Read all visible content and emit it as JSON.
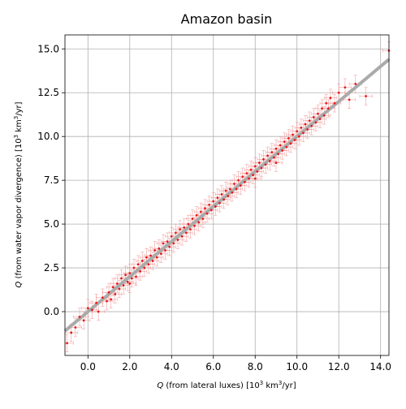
{
  "chart_data": {
    "type": "scatter",
    "title": "Amazon basin",
    "xlabel": {
      "var": "Q",
      "text": " (from lateral luxes) [10",
      "sup": "3",
      "unit": " km",
      "sup2": "3",
      "tail": "/yr]"
    },
    "ylabel": {
      "var": "Q",
      "text": " (from water vapor divergence) [10",
      "sup": "3",
      "unit": " km",
      "sup2": "3",
      "tail": "/yr]"
    },
    "xlim": [
      -1.1,
      14.4
    ],
    "ylim": [
      -2.5,
      15.8
    ],
    "xticks": [
      0.0,
      2.0,
      4.0,
      6.0,
      8.0,
      10.0,
      12.0,
      14.0
    ],
    "xtick_labels": [
      "0.0",
      "2.0",
      "4.0",
      "6.0",
      "8.0",
      "10.0",
      "12.0",
      "14.0"
    ],
    "yticks": [
      0.0,
      2.5,
      5.0,
      7.5,
      10.0,
      12.5,
      15.0
    ],
    "ytick_labels": [
      "0.0",
      "2.5",
      "5.0",
      "7.5",
      "10.0",
      "12.5",
      "15.0"
    ],
    "grid": true,
    "fit_line": {
      "slope": 1.0,
      "intercept": 0.0,
      "color": "#aaaaaa"
    },
    "point_color": "#e31a1c",
    "errorbar_color": "#f08080",
    "points": [
      [
        -1.0,
        -1.8,
        0.3,
        0.5
      ],
      [
        -0.8,
        -1.2,
        0.3,
        0.5
      ],
      [
        -0.6,
        -0.9,
        0.3,
        0.5
      ],
      [
        -0.4,
        -0.3,
        0.3,
        0.5
      ],
      [
        -0.2,
        -0.5,
        0.3,
        0.5
      ],
      [
        0.0,
        0.2,
        0.3,
        0.5
      ],
      [
        0.2,
        0.1,
        0.3,
        0.5
      ],
      [
        0.4,
        0.5,
        0.3,
        0.5
      ],
      [
        0.5,
        0.0,
        0.3,
        0.5
      ],
      [
        0.7,
        0.8,
        0.3,
        0.5
      ],
      [
        0.9,
        0.6,
        0.3,
        0.5
      ],
      [
        1.0,
        1.1,
        0.3,
        0.5
      ],
      [
        1.1,
        0.7,
        0.3,
        0.5
      ],
      [
        1.2,
        1.4,
        0.3,
        0.5
      ],
      [
        1.3,
        1.0,
        0.3,
        0.5
      ],
      [
        1.4,
        1.6,
        0.3,
        0.5
      ],
      [
        1.5,
        1.3,
        0.3,
        0.5
      ],
      [
        1.6,
        1.9,
        0.3,
        0.5
      ],
      [
        1.7,
        1.5,
        0.3,
        0.5
      ],
      [
        1.8,
        2.1,
        0.3,
        0.5
      ],
      [
        1.9,
        1.7,
        0.3,
        0.5
      ],
      [
        2.0,
        2.2,
        0.3,
        0.5
      ],
      [
        2.0,
        1.6,
        0.3,
        0.5
      ],
      [
        2.1,
        1.9,
        0.3,
        0.5
      ],
      [
        2.2,
        2.5,
        0.3,
        0.5
      ],
      [
        2.3,
        2.0,
        0.3,
        0.5
      ],
      [
        2.4,
        2.7,
        0.3,
        0.5
      ],
      [
        2.5,
        2.3,
        0.3,
        0.5
      ],
      [
        2.6,
        2.9,
        0.3,
        0.5
      ],
      [
        2.7,
        2.5,
        0.3,
        0.5
      ],
      [
        2.8,
        3.1,
        0.3,
        0.5
      ],
      [
        2.9,
        2.7,
        0.3,
        0.5
      ],
      [
        3.0,
        3.2,
        0.3,
        0.5
      ],
      [
        3.1,
        2.9,
        0.3,
        0.5
      ],
      [
        3.2,
        3.5,
        0.3,
        0.5
      ],
      [
        3.3,
        3.1,
        0.3,
        0.5
      ],
      [
        3.4,
        3.6,
        0.3,
        0.5
      ],
      [
        3.5,
        3.3,
        0.3,
        0.5
      ],
      [
        3.6,
        3.9,
        0.3,
        0.5
      ],
      [
        3.7,
        3.5,
        0.3,
        0.5
      ],
      [
        3.8,
        4.0,
        0.3,
        0.5
      ],
      [
        3.9,
        3.7,
        0.3,
        0.5
      ],
      [
        4.0,
        4.3,
        0.3,
        0.5
      ],
      [
        4.1,
        3.9,
        0.3,
        0.5
      ],
      [
        4.2,
        4.5,
        0.3,
        0.5
      ],
      [
        4.3,
        4.1,
        0.3,
        0.5
      ],
      [
        4.4,
        4.7,
        0.3,
        0.5
      ],
      [
        4.5,
        4.3,
        0.3,
        0.5
      ],
      [
        4.6,
        4.8,
        0.3,
        0.5
      ],
      [
        4.7,
        4.5,
        0.3,
        0.5
      ],
      [
        4.8,
        5.0,
        0.3,
        0.5
      ],
      [
        4.9,
        4.7,
        0.3,
        0.5
      ],
      [
        5.0,
        5.3,
        0.3,
        0.5
      ],
      [
        5.1,
        4.9,
        0.3,
        0.5
      ],
      [
        5.2,
        5.5,
        0.3,
        0.5
      ],
      [
        5.3,
        5.1,
        0.3,
        0.5
      ],
      [
        5.4,
        5.7,
        0.3,
        0.5
      ],
      [
        5.5,
        5.3,
        0.3,
        0.5
      ],
      [
        5.6,
        5.9,
        0.3,
        0.5
      ],
      [
        5.7,
        5.6,
        0.3,
        0.5
      ],
      [
        5.8,
        6.1,
        0.3,
        0.5
      ],
      [
        5.9,
        5.8,
        0.3,
        0.5
      ],
      [
        6.0,
        6.3,
        0.3,
        0.5
      ],
      [
        6.1,
        6.0,
        0.3,
        0.5
      ],
      [
        6.2,
        6.5,
        0.3,
        0.5
      ],
      [
        6.3,
        6.2,
        0.3,
        0.5
      ],
      [
        6.4,
        6.7,
        0.3,
        0.5
      ],
      [
        6.5,
        6.4,
        0.3,
        0.5
      ],
      [
        6.6,
        6.9,
        0.3,
        0.5
      ],
      [
        6.7,
        6.6,
        0.3,
        0.5
      ],
      [
        6.8,
        7.0,
        0.3,
        0.5
      ],
      [
        6.9,
        6.8,
        0.3,
        0.5
      ],
      [
        7.0,
        7.3,
        0.3,
        0.5
      ],
      [
        7.1,
        7.0,
        0.3,
        0.5
      ],
      [
        7.2,
        7.5,
        0.3,
        0.5
      ],
      [
        7.3,
        7.2,
        0.3,
        0.5
      ],
      [
        7.4,
        7.7,
        0.3,
        0.5
      ],
      [
        7.5,
        7.4,
        0.3,
        0.5
      ],
      [
        7.6,
        7.9,
        0.3,
        0.5
      ],
      [
        7.7,
        7.6,
        0.3,
        0.5
      ],
      [
        7.8,
        8.1,
        0.3,
        0.5
      ],
      [
        7.9,
        7.8,
        0.3,
        0.5
      ],
      [
        8.0,
        8.3,
        0.3,
        0.5
      ],
      [
        8.0,
        7.6,
        0.3,
        0.5
      ],
      [
        8.1,
        8.0,
        0.3,
        0.5
      ],
      [
        8.2,
        8.5,
        0.3,
        0.5
      ],
      [
        8.3,
        8.2,
        0.3,
        0.5
      ],
      [
        8.4,
        8.7,
        0.3,
        0.5
      ],
      [
        8.5,
        8.4,
        0.3,
        0.5
      ],
      [
        8.6,
        8.9,
        0.3,
        0.5
      ],
      [
        8.7,
        8.6,
        0.3,
        0.5
      ],
      [
        8.8,
        9.1,
        0.3,
        0.5
      ],
      [
        8.9,
        8.8,
        0.3,
        0.5
      ],
      [
        9.0,
        9.3,
        0.3,
        0.5
      ],
      [
        9.0,
        8.5,
        0.3,
        0.5
      ],
      [
        9.1,
        9.0,
        0.3,
        0.5
      ],
      [
        9.2,
        9.5,
        0.3,
        0.5
      ],
      [
        9.3,
        9.2,
        0.3,
        0.5
      ],
      [
        9.4,
        9.7,
        0.3,
        0.5
      ],
      [
        9.5,
        9.4,
        0.3,
        0.5
      ],
      [
        9.6,
        9.9,
        0.3,
        0.5
      ],
      [
        9.7,
        9.6,
        0.3,
        0.5
      ],
      [
        9.8,
        10.1,
        0.3,
        0.5
      ],
      [
        9.9,
        9.8,
        0.3,
        0.5
      ],
      [
        10.0,
        10.3,
        0.3,
        0.5
      ],
      [
        10.1,
        10.0,
        0.3,
        0.5
      ],
      [
        10.2,
        10.5,
        0.3,
        0.5
      ],
      [
        10.3,
        10.2,
        0.3,
        0.5
      ],
      [
        10.4,
        10.7,
        0.3,
        0.5
      ],
      [
        10.5,
        10.4,
        0.3,
        0.5
      ],
      [
        10.6,
        10.9,
        0.3,
        0.5
      ],
      [
        10.7,
        10.6,
        0.3,
        0.5
      ],
      [
        10.8,
        11.1,
        0.3,
        0.5
      ],
      [
        10.9,
        10.8,
        0.3,
        0.5
      ],
      [
        11.0,
        11.3,
        0.3,
        0.5
      ],
      [
        11.1,
        11.0,
        0.3,
        0.5
      ],
      [
        11.2,
        11.6,
        0.3,
        0.5
      ],
      [
        11.3,
        11.2,
        0.3,
        0.5
      ],
      [
        11.4,
        11.9,
        0.3,
        0.5
      ],
      [
        11.5,
        11.6,
        0.3,
        0.5
      ],
      [
        11.6,
        12.2,
        0.3,
        0.5
      ],
      [
        11.8,
        11.9,
        0.3,
        0.5
      ],
      [
        12.0,
        12.5,
        0.3,
        0.5
      ],
      [
        12.3,
        12.8,
        0.3,
        0.5
      ],
      [
        12.5,
        12.1,
        0.3,
        0.5
      ],
      [
        12.8,
        13.0,
        0.3,
        0.5
      ],
      [
        13.3,
        12.3,
        0.3,
        0.5
      ],
      [
        14.4,
        14.9,
        0.3,
        0.5
      ]
    ]
  }
}
